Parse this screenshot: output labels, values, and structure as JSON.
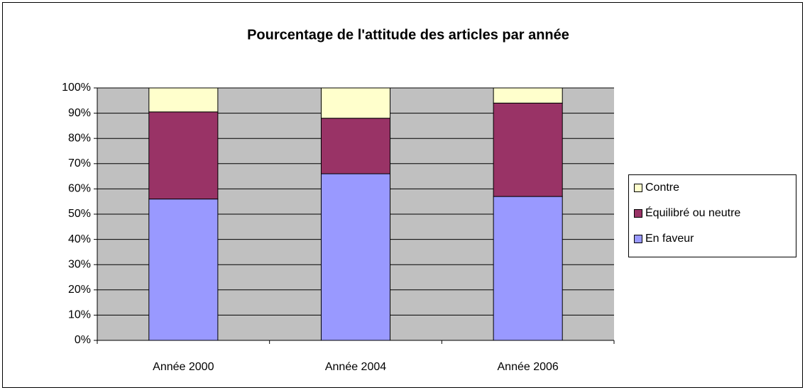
{
  "chart_data": {
    "type": "stacked_bar",
    "title": "Pourcentage de l'attitude des articles par année",
    "categories": [
      "Année 2000",
      "Année 2004",
      "Année 2006"
    ],
    "series": [
      {
        "name": "En faveur",
        "color": "#9999ff",
        "values": [
          56,
          66,
          57
        ]
      },
      {
        "name": "Équilibré ou neutre",
        "color": "#993366",
        "values": [
          34.5,
          22,
          37
        ]
      },
      {
        "name": "Contre",
        "color": "#ffffcc",
        "values": [
          9.5,
          12,
          6
        ]
      }
    ],
    "ylim": [
      0,
      100
    ],
    "yticks": [
      {
        "value": 0,
        "label": "0%"
      },
      {
        "value": 10,
        "label": "10%"
      },
      {
        "value": 20,
        "label": "20%"
      },
      {
        "value": 30,
        "label": "30%"
      },
      {
        "value": 40,
        "label": "40%"
      },
      {
        "value": 50,
        "label": "50%"
      },
      {
        "value": 60,
        "label": "60%"
      },
      {
        "value": 70,
        "label": "70%"
      },
      {
        "value": 80,
        "label": "80%"
      },
      {
        "value": 90,
        "label": "90%"
      },
      {
        "value": 100,
        "label": "100%"
      }
    ],
    "grid": true,
    "plot_background": "#c0c0c0",
    "legend": "right"
  }
}
